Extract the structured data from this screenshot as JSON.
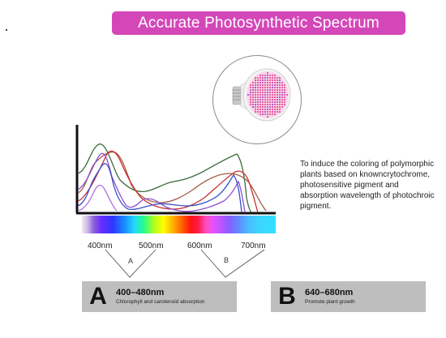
{
  "title": "Accurate Photosynthetic Spectrum",
  "description": "To induce the coloring of polymorphic plants based on knowncrytochrome, photosensitive pigment and absorption wavelength of photochroic pigment.",
  "spectrum_labels": [
    "400nm",
    "500nm",
    "600nm",
    "700nm"
  ],
  "regions": [
    "A",
    "B"
  ],
  "box_a": {
    "letter": "A",
    "range": "400–480nm",
    "subtitle": "Chlorophyll and carotenoid absorption"
  },
  "box_b": {
    "letter": "B",
    "range": "640–680nm",
    "subtitle": "Promote plant growth"
  },
  "colors": {
    "title_bg": "#d447b8",
    "box_bg": "#bebebe",
    "led_pink": "#e0388f"
  },
  "icons": {
    "bulb": "led-bulb-icon"
  }
}
